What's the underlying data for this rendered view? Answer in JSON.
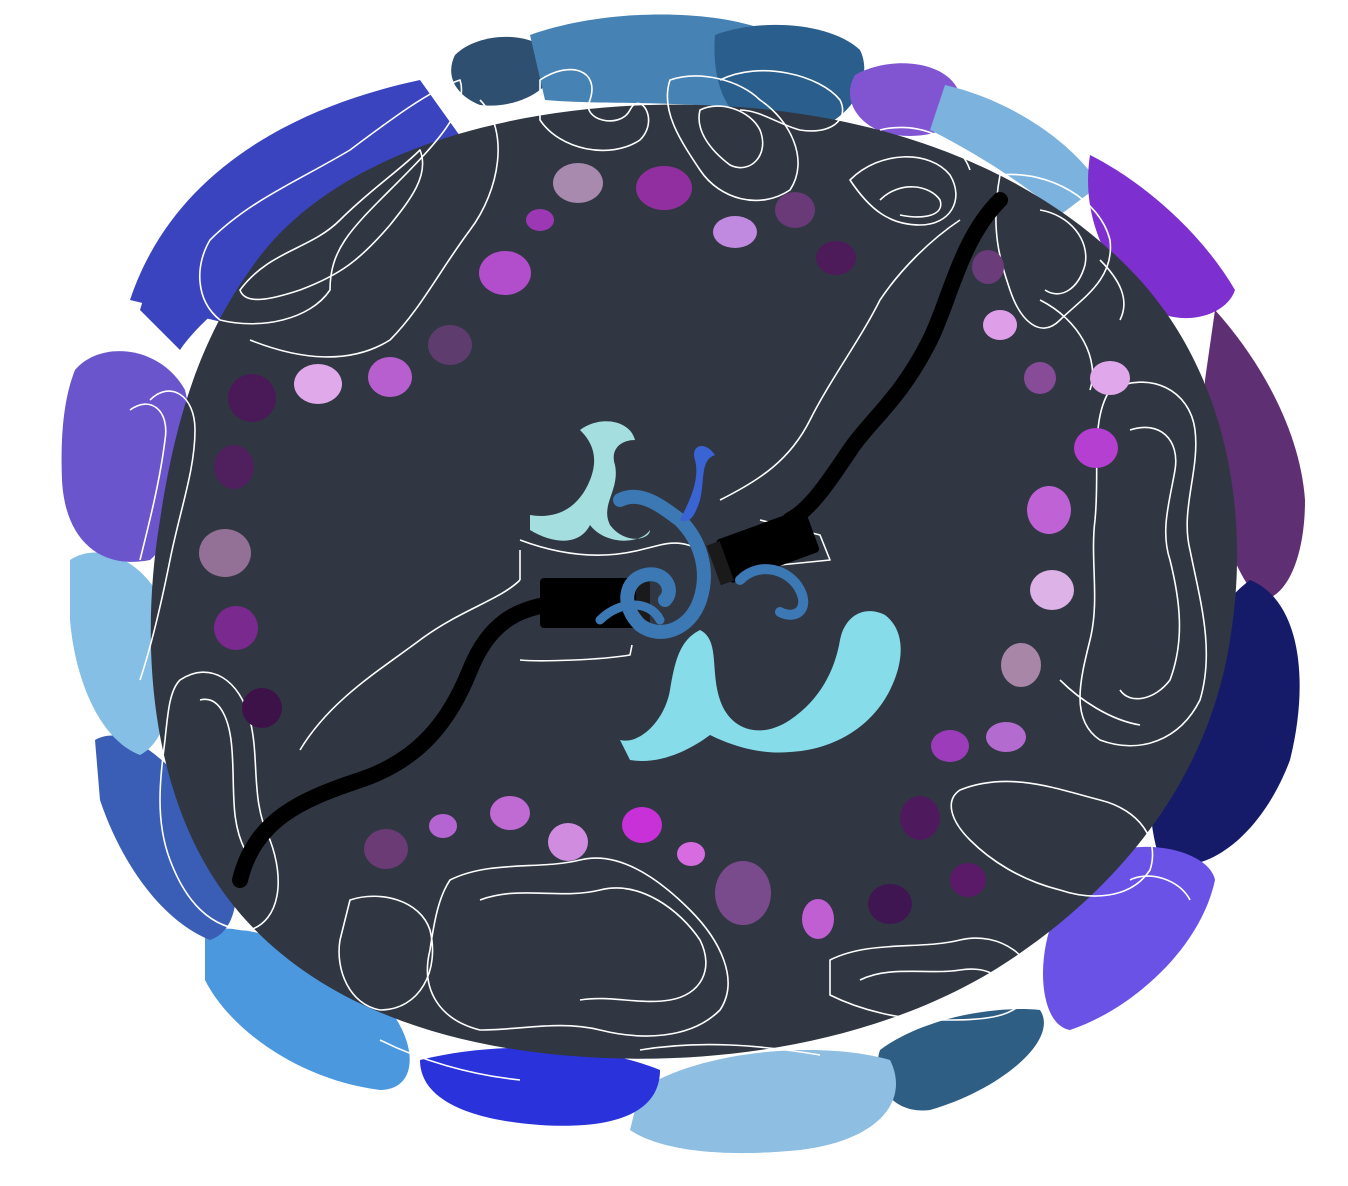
{
  "artwork": {
    "kind": "illustration",
    "palette": {
      "background": "#ffffff",
      "inner_dark": "#303742",
      "outline": "#ffffff",
      "cable": "#000000",
      "splash_light": "#87dcea",
      "splash_pale": "#a5dede",
      "splash_mid": "#3c78b4",
      "splash_deep": "#3a63d4"
    },
    "rim_blobs": [
      {
        "color": "#3b44bf"
      },
      {
        "color": "#2f4f70"
      },
      {
        "color": "#4682b4"
      },
      {
        "color": "#2a5e8c"
      },
      {
        "color": "#8155d1"
      },
      {
        "color": "#7bb3de"
      },
      {
        "color": "#7d2fcf"
      },
      {
        "color": "#5f2f74"
      },
      {
        "color": "#151b69"
      },
      {
        "color": "#6a52e6"
      },
      {
        "color": "#2f5e84"
      },
      {
        "color": "#8ebee2"
      },
      {
        "color": "#2a32dc"
      },
      {
        "color": "#4b98de"
      },
      {
        "color": "#3a5db5"
      },
      {
        "color": "#86bfe6"
      },
      {
        "color": "#6a55cc"
      },
      {
        "color": "#3b44bf"
      }
    ],
    "dots": [
      {
        "color": "#a88aae"
      },
      {
        "color": "#922fa0"
      },
      {
        "color": "#c08ae0"
      },
      {
        "color": "#6a3a78"
      },
      {
        "color": "#4d1a5a"
      },
      {
        "color": "#9d38b5"
      },
      {
        "color": "#b24dcc"
      },
      {
        "color": "#5e3d6e"
      },
      {
        "color": "#b85fd0"
      },
      {
        "color": "#e0aaea"
      },
      {
        "color": "#4a1a58"
      },
      {
        "color": "#4f1f5e"
      },
      {
        "color": "#937095"
      },
      {
        "color": "#7a2a8f"
      },
      {
        "color": "#3d1248"
      },
      {
        "color": "#6a3b74"
      },
      {
        "color": "#b565d1"
      },
      {
        "color": "#c06ad4"
      },
      {
        "color": "#d08de0"
      },
      {
        "color": "#c830d8"
      },
      {
        "color": "#d76ce0"
      },
      {
        "color": "#7a4b8c"
      },
      {
        "color": "#c05fd2"
      },
      {
        "color": "#4e1a5d"
      },
      {
        "color": "#3f1652"
      },
      {
        "color": "#5b1a68"
      },
      {
        "color": "#9d3cba"
      },
      {
        "color": "#b46bd0"
      },
      {
        "color": "#a786a8"
      },
      {
        "color": "#ddb2e6"
      },
      {
        "color": "#bf62d6"
      },
      {
        "color": "#b43fd0"
      },
      {
        "color": "#e0a8ea"
      },
      {
        "color": "#874b98"
      },
      {
        "color": "#df9fe8"
      },
      {
        "color": "#6a3c7a"
      }
    ]
  }
}
